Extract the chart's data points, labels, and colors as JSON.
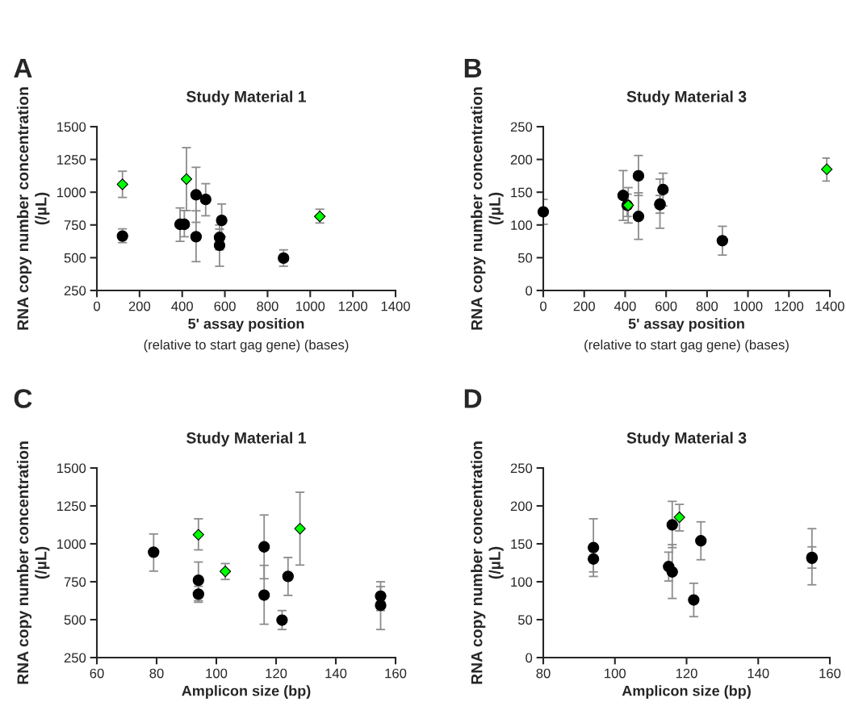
{
  "chart_data": [
    {
      "type": "scatter",
      "title": "Study Material 1",
      "xlabel": "5' assay position\n(relative to start gag gene) (bases)",
      "ylabel": "RNA copy number concentration\n(/µL)",
      "annotations": [
        "A"
      ],
      "xlim": [
        0,
        1400
      ],
      "xticks": [
        0,
        200,
        400,
        600,
        800,
        1000,
        1200,
        1400
      ],
      "ylim": [
        250,
        1500
      ],
      "yticks": [
        250,
        500,
        750,
        1000,
        1250,
        1500
      ],
      "grid": false,
      "legend": false,
      "series": [
        {
          "color": "#000000",
          "marker": "circle",
          "x": [
            120,
            390,
            410,
            465,
            465,
            510,
            575,
            575,
            585,
            875
          ],
          "values": [
            665,
            755,
            755,
            980,
            660,
            945,
            655,
            595,
            785,
            497
          ],
          "errors": [
            [
              615,
              720
            ],
            [
              625,
              880
            ],
            [
              660,
              860
            ],
            [
              770,
              1190
            ],
            [
              470,
              858
            ],
            [
              820,
              1065
            ],
            [
              560,
              750
            ],
            [
              435,
              718
            ],
            [
              660,
              910
            ],
            [
              435,
              560
            ]
          ]
        },
        {
          "color": "#00ff00",
          "marker": "diamond",
          "x": [
            120,
            420,
            1045
          ],
          "values": [
            1060,
            1100,
            815
          ],
          "errors": [
            [
              960,
              1160
            ],
            [
              860,
              1340
            ],
            [
              765,
              870
            ]
          ]
        }
      ]
    },
    {
      "type": "scatter",
      "title": "Study Material 3",
      "xlabel": "5' assay position\n(relative to start gag gene) (bases)",
      "ylabel": "RNA copy number concentration\n(/µL)",
      "annotations": [
        "B"
      ],
      "xlim": [
        0,
        1400
      ],
      "xticks": [
        0,
        200,
        400,
        600,
        800,
        1000,
        1200,
        1400
      ],
      "ylim": [
        0,
        250
      ],
      "yticks": [
        0,
        50,
        100,
        150,
        200,
        250
      ],
      "grid": false,
      "legend": false,
      "series": [
        {
          "color": "#000000",
          "marker": "circle",
          "x": [
            0,
            390,
            410,
            465,
            465,
            570,
            570,
            585,
            875
          ],
          "values": [
            120,
            145,
            130,
            175,
            113,
            132,
            131,
            154,
            76
          ],
          "errors": [
            [
              101,
              139
            ],
            [
              107,
              183
            ],
            [
              113,
              147
            ],
            [
              145,
              206
            ],
            [
              78,
              149
            ],
            [
              95,
              170
            ],
            [
              118,
              145
            ],
            [
              129,
              179
            ],
            [
              54,
              98
            ]
          ]
        },
        {
          "color": "#00ff00",
          "marker": "diamond",
          "x": [
            415,
            1385
          ],
          "values": [
            130,
            185
          ],
          "errors": [
            [
              103,
              157
            ],
            [
              167,
              202
            ]
          ]
        }
      ]
    },
    {
      "type": "scatter",
      "title": "Study Material 1",
      "xlabel": "Amplicon size (bp)",
      "ylabel": "RNA copy number concentration\n(/µL)",
      "annotations": [
        "C"
      ],
      "xlim": [
        60,
        160
      ],
      "xticks": [
        60,
        80,
        100,
        120,
        140,
        160
      ],
      "ylim": [
        250,
        1500
      ],
      "yticks": [
        250,
        500,
        750,
        1000,
        1250,
        1500
      ],
      "grid": false,
      "legend": false,
      "series": [
        {
          "color": "#000000",
          "marker": "circle",
          "x": [
            79,
            94,
            94,
            116,
            116,
            122,
            124,
            155,
            155
          ],
          "values": [
            945,
            760,
            668,
            980,
            662,
            497,
            785,
            655,
            595
          ],
          "errors": [
            [
              820,
              1065
            ],
            [
              625,
              880
            ],
            [
              615,
              720
            ],
            [
              770,
              1190
            ],
            [
              470,
              858
            ],
            [
              435,
              560
            ],
            [
              660,
              910
            ],
            [
              560,
              750
            ],
            [
              435,
              718
            ]
          ]
        },
        {
          "color": "#00ff00",
          "marker": "diamond",
          "x": [
            94,
            103,
            128
          ],
          "values": [
            1060,
            818,
            1100
          ],
          "errors": [
            [
              960,
              1165
            ],
            [
              765,
              870
            ],
            [
              860,
              1340
            ]
          ]
        }
      ]
    },
    {
      "type": "scatter",
      "title": "Study Material 3",
      "xlabel": "Amplicon size (bp)",
      "ylabel": "RNA copy number concentration\n(/µL)",
      "annotations": [
        "D"
      ],
      "xlim": [
        80,
        160
      ],
      "xticks": [
        80,
        100,
        120,
        140,
        160
      ],
      "ylim": [
        0,
        250
      ],
      "yticks": [
        0,
        50,
        100,
        150,
        200,
        250
      ],
      "grid": false,
      "legend": false,
      "series": [
        {
          "color": "#000000",
          "marker": "circle",
          "x": [
            94,
            94,
            115,
            116,
            116,
            122,
            124,
            155,
            155
          ],
          "values": [
            145,
            130,
            120,
            175,
            113,
            76,
            154,
            132,
            131
          ],
          "errors": [
            [
              107,
              183
            ],
            [
              113,
              130
            ],
            [
              101,
              139
            ],
            [
              145,
              206
            ],
            [
              78,
              149
            ],
            [
              54,
              98
            ],
            [
              129,
              179
            ],
            [
              96,
              170
            ],
            [
              118,
              146
            ]
          ]
        },
        {
          "color": "#00ff00",
          "marker": "diamond",
          "x": [
            118
          ],
          "values": [
            185
          ],
          "errors": [
            [
              167,
              202
            ]
          ]
        }
      ]
    }
  ]
}
